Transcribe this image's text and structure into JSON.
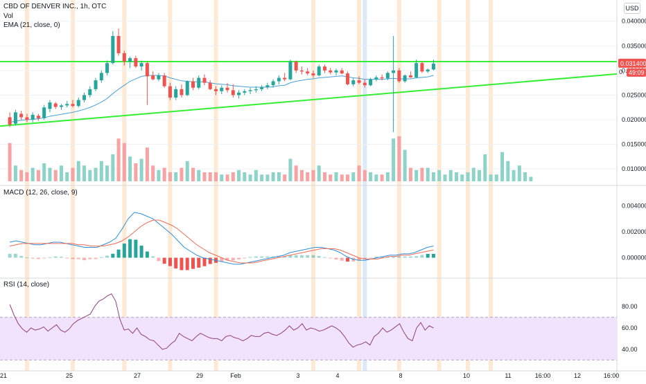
{
  "header": {
    "symbol_line": "CBD OF DENVER INC., 1h, OTC",
    "vol_label": "Vol",
    "ema_label": "EMA (21, close, 0)",
    "currency": "USD"
  },
  "price_tag": {
    "price": "0.031400",
    "countdown": "49:09",
    "partial_label": "0."
  },
  "colors": {
    "up": "#26a69a",
    "down": "#ef5350",
    "vol_up": "#8dd3c7",
    "vol_down": "#f7a3a3",
    "trendline": "#33ee33",
    "ema": "#4a9fd8",
    "macd": "#2f8fd8",
    "signal": "#f06a55",
    "rsi_line": "#8e3e7c",
    "rsi_band": "#f1e3fb",
    "highlight_orange": "#fde9d4",
    "highlight_blue": "#dbeaf9",
    "grid": "#eef0f3"
  },
  "chart_data": [
    {
      "type": "candlestick",
      "title": "CBD OF DENVER INC., 1h, OTC",
      "y_ticks": [
        "0.040000",
        "0.035000",
        "0.030000",
        "0.025000",
        "0.020000",
        "0.015000",
        "0.010000"
      ],
      "ylim": [
        0.0075,
        0.0415
      ],
      "x_ticks": [
        "21",
        "25",
        "27",
        "29",
        "Feb",
        "3",
        "4",
        "8",
        "10",
        "11",
        "16:00",
        "12",
        "16:00"
      ],
      "candles": [
        [
          0.0205,
          0.0215,
          0.0185,
          0.019
        ],
        [
          0.0192,
          0.022,
          0.0188,
          0.0215
        ],
        [
          0.0212,
          0.0218,
          0.02,
          0.0205
        ],
        [
          0.0205,
          0.0212,
          0.0195,
          0.02
        ],
        [
          0.02,
          0.0215,
          0.0195,
          0.021
        ],
        [
          0.0208,
          0.0212,
          0.0198,
          0.0203
        ],
        [
          0.0203,
          0.023,
          0.02,
          0.0225
        ],
        [
          0.0222,
          0.024,
          0.0215,
          0.0235
        ],
        [
          0.0233,
          0.0236,
          0.0222,
          0.0226
        ],
        [
          0.0226,
          0.0232,
          0.022,
          0.0229
        ],
        [
          0.0229,
          0.0238,
          0.0225,
          0.0232
        ],
        [
          0.0232,
          0.024,
          0.0225,
          0.0228
        ],
        [
          0.0228,
          0.0245,
          0.0225,
          0.024
        ],
        [
          0.024,
          0.0255,
          0.0235,
          0.025
        ],
        [
          0.025,
          0.0268,
          0.0245,
          0.0262
        ],
        [
          0.0262,
          0.0285,
          0.0258,
          0.028
        ],
        [
          0.028,
          0.03,
          0.0275,
          0.0295
        ],
        [
          0.0295,
          0.032,
          0.029,
          0.0315
        ],
        [
          0.0315,
          0.038,
          0.0312,
          0.037
        ],
        [
          0.037,
          0.0385,
          0.033,
          0.0335
        ],
        [
          0.0335,
          0.034,
          0.031,
          0.0318
        ],
        [
          0.0318,
          0.0328,
          0.0305,
          0.0325
        ],
        [
          0.0325,
          0.033,
          0.0305,
          0.0308
        ],
        [
          0.0308,
          0.032,
          0.03,
          0.0315
        ],
        [
          0.0315,
          0.0318,
          0.023,
          0.0288
        ],
        [
          0.029,
          0.0298,
          0.028,
          0.0282
        ],
        [
          0.0282,
          0.0295,
          0.0278,
          0.029
        ],
        [
          0.029,
          0.0295,
          0.0265,
          0.0268
        ],
        [
          0.0268,
          0.0275,
          0.024,
          0.0245
        ],
        [
          0.0245,
          0.0268,
          0.024,
          0.0262
        ],
        [
          0.0262,
          0.0272,
          0.0245,
          0.025
        ],
        [
          0.025,
          0.028,
          0.0248,
          0.0278
        ],
        [
          0.0278,
          0.0285,
          0.026,
          0.0265
        ],
        [
          0.0265,
          0.029,
          0.0262,
          0.0285
        ],
        [
          0.0285,
          0.0292,
          0.027,
          0.0275
        ],
        [
          0.0275,
          0.028,
          0.026,
          0.0262
        ],
        [
          0.0262,
          0.0268,
          0.025,
          0.0258
        ],
        [
          0.0258,
          0.027,
          0.0252,
          0.0265
        ],
        [
          0.0265,
          0.0275,
          0.0255,
          0.026
        ],
        [
          0.026,
          0.0272,
          0.0245,
          0.025
        ],
        [
          0.025,
          0.026,
          0.0243,
          0.0255
        ],
        [
          0.0255,
          0.0262,
          0.025,
          0.0258
        ],
        [
          0.0258,
          0.0265,
          0.0252,
          0.026
        ],
        [
          0.026,
          0.0268,
          0.0255,
          0.0262
        ],
        [
          0.0262,
          0.027,
          0.0258,
          0.0266
        ],
        [
          0.0266,
          0.0275,
          0.0262,
          0.027
        ],
        [
          0.027,
          0.0282,
          0.0265,
          0.0278
        ],
        [
          0.0278,
          0.029,
          0.0272,
          0.0285
        ],
        [
          0.0285,
          0.0295,
          0.0278,
          0.0282
        ],
        [
          0.0282,
          0.0322,
          0.028,
          0.0318
        ],
        [
          0.0318,
          0.032,
          0.0295,
          0.03
        ],
        [
          0.03,
          0.0308,
          0.0292,
          0.0298
        ],
        [
          0.0298,
          0.0305,
          0.029,
          0.0294
        ],
        [
          0.0294,
          0.03,
          0.0285,
          0.029
        ],
        [
          0.029,
          0.0312,
          0.0288,
          0.0308
        ],
        [
          0.0308,
          0.0312,
          0.0295,
          0.03
        ],
        [
          0.03,
          0.0305,
          0.0292,
          0.0296
        ],
        [
          0.0296,
          0.0304,
          0.029,
          0.03
        ],
        [
          0.03,
          0.0305,
          0.0292,
          0.0294
        ],
        [
          0.0294,
          0.0298,
          0.027,
          0.0272
        ],
        [
          0.0272,
          0.0285,
          0.0268,
          0.028
        ],
        [
          0.028,
          0.0288,
          0.0272,
          0.0275
        ],
        [
          0.0275,
          0.0282,
          0.0265,
          0.027
        ],
        [
          0.027,
          0.0285,
          0.0268,
          0.0282
        ],
        [
          0.0282,
          0.029,
          0.0278,
          0.0286
        ],
        [
          0.0286,
          0.0292,
          0.028,
          0.0284
        ],
        [
          0.0284,
          0.0298,
          0.028,
          0.0295
        ],
        [
          0.0295,
          0.037,
          0.0175,
          0.03
        ],
        [
          0.03,
          0.0305,
          0.0275,
          0.0278
        ],
        [
          0.0278,
          0.0292,
          0.0275,
          0.029
        ],
        [
          0.029,
          0.0298,
          0.0285,
          0.0286
        ],
        [
          0.0286,
          0.0322,
          0.0284,
          0.0315
        ],
        [
          0.0315,
          0.0318,
          0.0295,
          0.0298
        ],
        [
          0.0298,
          0.0304,
          0.0295,
          0.0302
        ],
        [
          0.0302,
          0.0322,
          0.03,
          0.0314
        ]
      ],
      "ema21": [
        0.0195,
        0.0197,
        0.0199,
        0.02,
        0.0201,
        0.0202,
        0.0204,
        0.0207,
        0.0209,
        0.0211,
        0.0213,
        0.0215,
        0.0218,
        0.0221,
        0.0225,
        0.023,
        0.0236,
        0.0243,
        0.0253,
        0.0262,
        0.027,
        0.0278,
        0.0283,
        0.0288,
        0.029,
        0.029,
        0.029,
        0.0289,
        0.0285,
        0.0282,
        0.0279,
        0.0278,
        0.0277,
        0.0277,
        0.0277,
        0.0275,
        0.0273,
        0.0272,
        0.0271,
        0.0269,
        0.0268,
        0.0267,
        0.0266,
        0.0266,
        0.0266,
        0.0266,
        0.0267,
        0.0269,
        0.027,
        0.0275,
        0.0278,
        0.028,
        0.0282,
        0.0283,
        0.0285,
        0.0286,
        0.0287,
        0.0288,
        0.0289,
        0.0287,
        0.0285,
        0.0284,
        0.0282,
        0.0282,
        0.0282,
        0.0282,
        0.0283,
        0.0284,
        0.0283,
        0.0283,
        0.0283,
        0.0285,
        0.0286,
        0.0287,
        0.029
      ],
      "trendlines": [
        {
          "from": [
            0,
            0.0318
          ],
          "to": [
            91,
            0.0318
          ]
        },
        {
          "from": [
            0,
            0.0187
          ],
          "to": [
            91,
            0.0293
          ]
        }
      ]
    },
    {
      "type": "bar",
      "title": "Vol",
      "ylim": [
        0,
        1
      ],
      "values": [
        0.85,
        0.35,
        0.25,
        0.2,
        0.3,
        0.25,
        0.4,
        0.3,
        0.25,
        0.35,
        0.2,
        0.3,
        0.45,
        0.35,
        0.25,
        0.3,
        0.45,
        0.35,
        0.6,
        0.95,
        0.85,
        0.55,
        0.4,
        0.5,
        0.75,
        0.35,
        0.25,
        0.3,
        0.2,
        0.2,
        0.3,
        0.45,
        0.3,
        0.25,
        0.2,
        0.2,
        0.2,
        0.15,
        0.15,
        0.2,
        0.25,
        0.2,
        0.15,
        0.25,
        0.15,
        0.15,
        0.2,
        0.2,
        0.15,
        0.5,
        0.35,
        0.25,
        0.2,
        0.25,
        0.35,
        0.2,
        0.15,
        0.2,
        0.15,
        0.15,
        0.2,
        0.35,
        0.25,
        0.2,
        0.15,
        0.15,
        0.2,
        0.95,
        1.0,
        0.7,
        0.3,
        0.25,
        0.3,
        0.3,
        0.2,
        0.25,
        0.15,
        0.25,
        0.2,
        0.15,
        0.2,
        0.3,
        0.25,
        0.6,
        0.15,
        0.15,
        0.65,
        0.45,
        0.25,
        0.35,
        0.2,
        0.1
      ]
    },
    {
      "type": "line",
      "title": "MACD (12, 26, close, 9)",
      "y_ticks": [
        "0.004000",
        "0.002000",
        "0.000000"
      ],
      "ylim": [
        -0.0012,
        0.0044
      ],
      "macd": [
        0.0012,
        0.0013,
        0.0012,
        0.0011,
        0.001,
        0.001,
        0.0011,
        0.0012,
        0.0012,
        0.0011,
        0.001,
        0.0009,
        0.0008,
        0.0008,
        0.0008,
        0.001,
        0.0012,
        0.0015,
        0.0022,
        0.003,
        0.0035,
        0.0034,
        0.0032,
        0.003,
        0.0026,
        0.0022,
        0.0018,
        0.0013,
        0.0008,
        0.0005,
        0.0002,
        0.0,
        -0.0001,
        -0.0002,
        -0.0003,
        -0.0004,
        -0.0005,
        -0.0005,
        -0.0004,
        -0.0003,
        -0.0002,
        -0.0001,
        0.0,
        0.0001,
        0.0002,
        0.0004,
        0.0005,
        0.0006,
        0.0007,
        0.0008,
        0.0008,
        0.0007,
        0.0006,
        0.0004,
        0.0001,
        -0.0001,
        -0.0002,
        -0.0002,
        -0.0001,
        0.0,
        0.0001,
        0.0002,
        0.0002,
        0.0003,
        0.0003,
        0.0004,
        0.0006,
        0.0008,
        0.0009
      ],
      "signal": [
        0.0009,
        0.001,
        0.0011,
        0.0011,
        0.0011,
        0.0011,
        0.0011,
        0.0011,
        0.0011,
        0.0011,
        0.0011,
        0.001,
        0.001,
        0.0009,
        0.0009,
        0.0009,
        0.001,
        0.0011,
        0.0013,
        0.0016,
        0.002,
        0.0024,
        0.0027,
        0.0029,
        0.0029,
        0.0027,
        0.0025,
        0.0022,
        0.0018,
        0.0014,
        0.001,
        0.0007,
        0.0004,
        0.0002,
        0.0,
        -0.0002,
        -0.0003,
        -0.0004,
        -0.0004,
        -0.0004,
        -0.0003,
        -0.0002,
        -0.0001,
        0.0,
        0.0001,
        0.0002,
        0.0003,
        0.0004,
        0.0005,
        0.0006,
        0.0007,
        0.0007,
        0.0007,
        0.0006,
        0.0004,
        0.0002,
        0.0,
        -0.0001,
        -0.0001,
        -0.0001,
        0.0,
        0.0001,
        0.0001,
        0.0002,
        0.0002,
        0.0003,
        0.0004,
        0.0005,
        0.0006
      ]
    },
    {
      "type": "line",
      "title": "RSI (14, close)",
      "y_ticks": [
        "80.00",
        "60.00",
        "40.00"
      ],
      "ylim": [
        25,
        95
      ],
      "band": [
        30,
        70
      ],
      "values": [
        82,
        72,
        64,
        59,
        56,
        60,
        58,
        59,
        61,
        57,
        60,
        63,
        58,
        56,
        59,
        64,
        67,
        69,
        71,
        73,
        80,
        85,
        87,
        90,
        92,
        85,
        68,
        58,
        59,
        55,
        60,
        54,
        52,
        49,
        48,
        44,
        40,
        41,
        45,
        48,
        55,
        52,
        50,
        48,
        52,
        55,
        53,
        51,
        50,
        50,
        48,
        52,
        53,
        51,
        50,
        48,
        50,
        53,
        52,
        52,
        55,
        56,
        54,
        53,
        55,
        58,
        62,
        58,
        60,
        64,
        58,
        60,
        59,
        57,
        58,
        60,
        62,
        60,
        57,
        52,
        46,
        42,
        44,
        45,
        47,
        44,
        52,
        55,
        60,
        56,
        58,
        61,
        64,
        56,
        50,
        48,
        60,
        65,
        58,
        62,
        60
      ]
    }
  ]
}
